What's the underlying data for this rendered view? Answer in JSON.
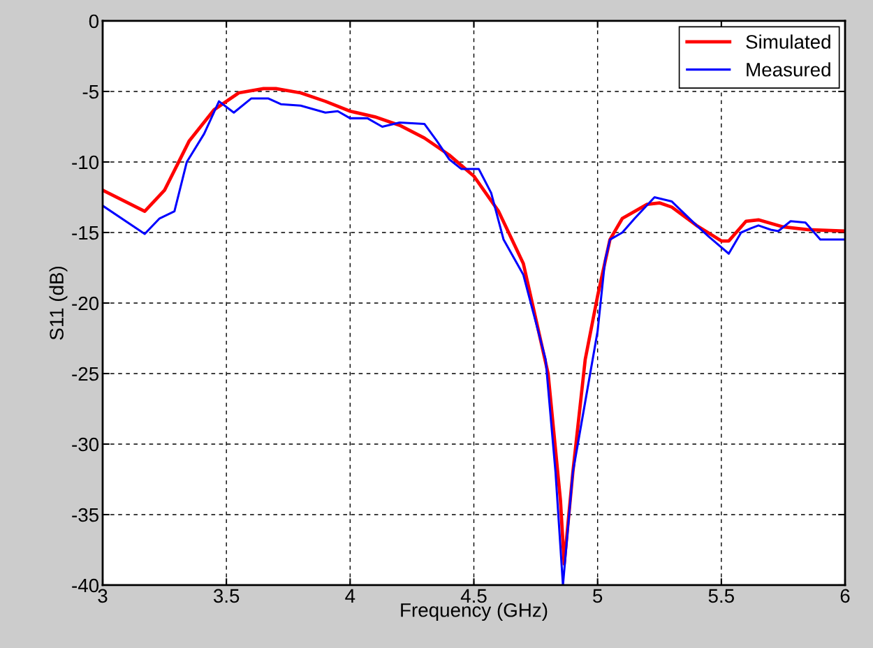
{
  "chart_data": {
    "type": "line",
    "xlabel": "Frequency (GHz)",
    "ylabel": "S11 (dB)",
    "xlim": [
      3,
      6
    ],
    "xticks": [
      3,
      3.5,
      4,
      4.5,
      5,
      5.5,
      6
    ],
    "ylim": [
      -40,
      0
    ],
    "yticks": [
      -40,
      -35,
      -30,
      -25,
      -20,
      -15,
      -10,
      -5,
      0
    ],
    "grid": true,
    "legend": "top right",
    "line_style": "solid",
    "series": [
      {
        "name": "Simulated",
        "color": "#ff0000",
        "x": [
          3.0,
          3.17,
          3.25,
          3.35,
          3.45,
          3.55,
          3.65,
          3.7,
          3.8,
          3.9,
          4.0,
          4.1,
          4.2,
          4.3,
          4.4,
          4.5,
          4.6,
          4.7,
          4.8,
          4.85,
          4.865,
          4.9,
          4.95,
          5.0,
          5.05,
          5.1,
          5.2,
          5.25,
          5.3,
          5.4,
          5.5,
          5.53,
          5.6,
          5.65,
          5.75,
          5.85,
          6.0
        ],
        "values": [
          -12,
          -13.5,
          -12,
          -8.5,
          -6.3,
          -5.1,
          -4.8,
          -4.8,
          -5.1,
          -5.7,
          -6.4,
          -6.8,
          -7.4,
          -8.3,
          -9.5,
          -11,
          -13.5,
          -17.2,
          -25,
          -34,
          -38.5,
          -32,
          -24,
          -19.5,
          -15.5,
          -14,
          -13,
          -12.9,
          -13.2,
          -14.5,
          -15.6,
          -15.6,
          -14.2,
          -14.1,
          -14.6,
          -14.8,
          -14.9
        ]
      },
      {
        "name": "Measured",
        "color": "#0000ff",
        "x": [
          3.0,
          3.17,
          3.23,
          3.29,
          3.34,
          3.41,
          3.47,
          3.53,
          3.6,
          3.67,
          3.72,
          3.8,
          3.9,
          3.95,
          4.0,
          4.07,
          4.13,
          4.2,
          4.3,
          4.35,
          4.4,
          4.45,
          4.52,
          4.57,
          4.62,
          4.7,
          4.79,
          4.83,
          4.86,
          4.9,
          4.95,
          5.0,
          5.03,
          5.05,
          5.1,
          5.15,
          5.23,
          5.3,
          5.4,
          5.45,
          5.53,
          5.58,
          5.62,
          5.65,
          5.7,
          5.73,
          5.78,
          5.84,
          5.9,
          6.0
        ],
        "values": [
          -13.1,
          -15.1,
          -14,
          -13.5,
          -10,
          -8,
          -5.7,
          -6.5,
          -5.5,
          -5.5,
          -5.9,
          -6,
          -6.5,
          -6.4,
          -6.9,
          -6.9,
          -7.5,
          -7.2,
          -7.3,
          -8.5,
          -9.8,
          -10.5,
          -10.5,
          -12.2,
          -15.5,
          -18,
          -24,
          -32,
          -40,
          -32,
          -27,
          -22,
          -17,
          -15.5,
          -15,
          -14,
          -12.5,
          -12.8,
          -14.5,
          -15.3,
          -16.5,
          -15,
          -14.7,
          -14.5,
          -14.8,
          -14.9,
          -14.2,
          -14.3,
          -15.5,
          -15.5
        ]
      }
    ]
  }
}
